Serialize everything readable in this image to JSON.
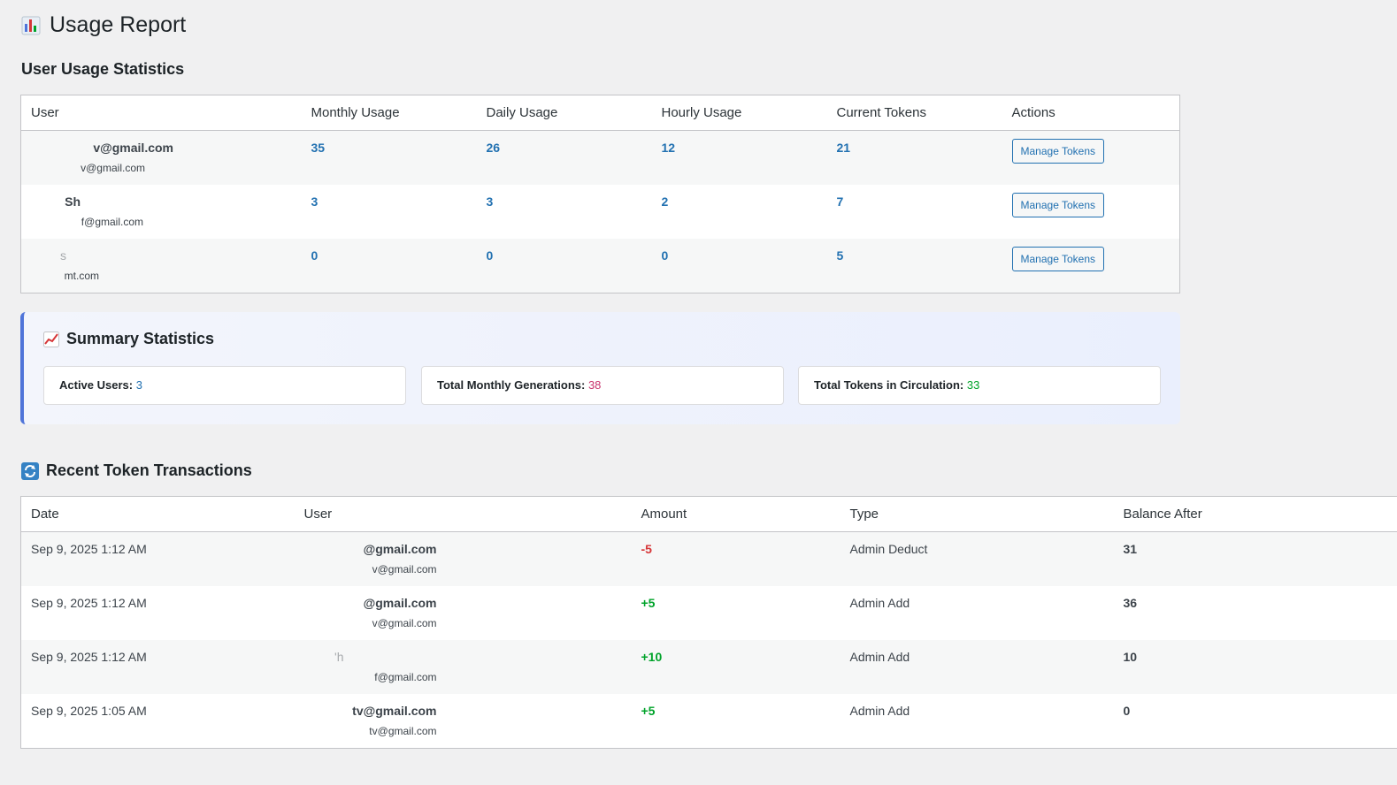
{
  "page": {
    "title": "Usage Report",
    "title_icon": "bar-chart-icon"
  },
  "usage": {
    "heading": "User Usage Statistics",
    "columns": [
      "User",
      "Monthly Usage",
      "Daily Usage",
      "Hourly Usage",
      "Current Tokens",
      "Actions"
    ],
    "rows": [
      {
        "name": "v@gmail.com",
        "email": "v@gmail.com",
        "monthly": "35",
        "daily": "26",
        "hourly": "12",
        "tokens": "21",
        "action": "Manage Tokens"
      },
      {
        "name": "Sh",
        "email": "f@gmail.com",
        "monthly": "3",
        "daily": "3",
        "hourly": "2",
        "tokens": "7",
        "action": "Manage Tokens"
      },
      {
        "name": "s",
        "email": "mt.com",
        "monthly": "0",
        "daily": "0",
        "hourly": "0",
        "tokens": "5",
        "action": "Manage Tokens"
      }
    ]
  },
  "summary": {
    "heading": "Summary Statistics",
    "icon": "trend-up-chart-icon",
    "active_users_label": "Active Users:",
    "active_users_value": "3",
    "active_users_color": "#2271b1",
    "monthly_generations_label": "Total Monthly Generations:",
    "monthly_generations_value": "38",
    "monthly_generations_color": "#c9356e",
    "tokens_circulation_label": "Total Tokens in Circulation:",
    "tokens_circulation_value": "33",
    "tokens_circulation_color": "#00a32a"
  },
  "transactions": {
    "heading": "Recent Token Transactions",
    "icon": "refresh-icon",
    "columns": [
      "Date",
      "User",
      "Amount",
      "Type",
      "Balance After"
    ],
    "rows": [
      {
        "date": "Sep 9, 2025 1:12 AM",
        "name": "@gmail.com",
        "email": "v@gmail.com",
        "amount": "-5",
        "type": "Admin Deduct",
        "balance": "31"
      },
      {
        "date": "Sep 9, 2025 1:12 AM",
        "name": "@gmail.com",
        "email": "v@gmail.com",
        "amount": "+5",
        "type": "Admin Add",
        "balance": "36"
      },
      {
        "date": "Sep 9, 2025 1:12 AM",
        "name": "'h",
        "email": "f@gmail.com",
        "amount": "+10",
        "type": "Admin Add",
        "balance": "10"
      },
      {
        "date": "Sep 9, 2025 1:05 AM",
        "name": "tv@gmail.com",
        "email": "tv@gmail.com",
        "amount": "+5",
        "type": "Admin Add",
        "balance": "0"
      }
    ]
  }
}
